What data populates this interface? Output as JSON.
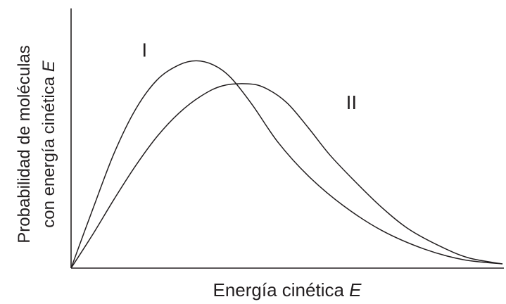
{
  "chart_data": {
    "type": "line",
    "xlabel": {
      "text": "Energía cinética ",
      "var": "E"
    },
    "ylabel": {
      "line1": "Probabilidad de moléculas",
      "line2_text": "con energía cinética ",
      "line2_var": "E"
    },
    "series": [
      {
        "name": "I",
        "x": [
          0,
          0.05,
          0.1,
          0.15,
          0.2,
          0.25,
          0.29,
          0.33,
          0.37,
          0.42,
          0.48,
          0.55,
          0.63,
          0.72,
          0.82,
          0.91,
          1.0
        ],
        "y": [
          0,
          0.28,
          0.55,
          0.76,
          0.9,
          0.97,
          0.99,
          0.97,
          0.91,
          0.78,
          0.6,
          0.44,
          0.3,
          0.18,
          0.09,
          0.04,
          0.02
        ]
      },
      {
        "name": "II",
        "x": [
          0,
          0.05,
          0.1,
          0.15,
          0.2,
          0.25,
          0.3,
          0.35,
          0.41,
          0.45,
          0.5,
          0.55,
          0.6,
          0.66,
          0.72,
          0.78,
          0.85,
          0.92,
          1.0
        ],
        "y": [
          0,
          0.16,
          0.33,
          0.49,
          0.63,
          0.74,
          0.82,
          0.87,
          0.88,
          0.86,
          0.79,
          0.67,
          0.54,
          0.41,
          0.29,
          0.19,
          0.11,
          0.05,
          0.02
        ]
      }
    ],
    "series_labels": [
      {
        "series": "I",
        "x": 0.17,
        "y": 1.01
      },
      {
        "series": "II",
        "x": 0.65,
        "y": 0.76
      }
    ],
    "xlim": [
      0,
      1
    ],
    "ylim": [
      0,
      1.24
    ],
    "grid": false,
    "legend": "none"
  }
}
